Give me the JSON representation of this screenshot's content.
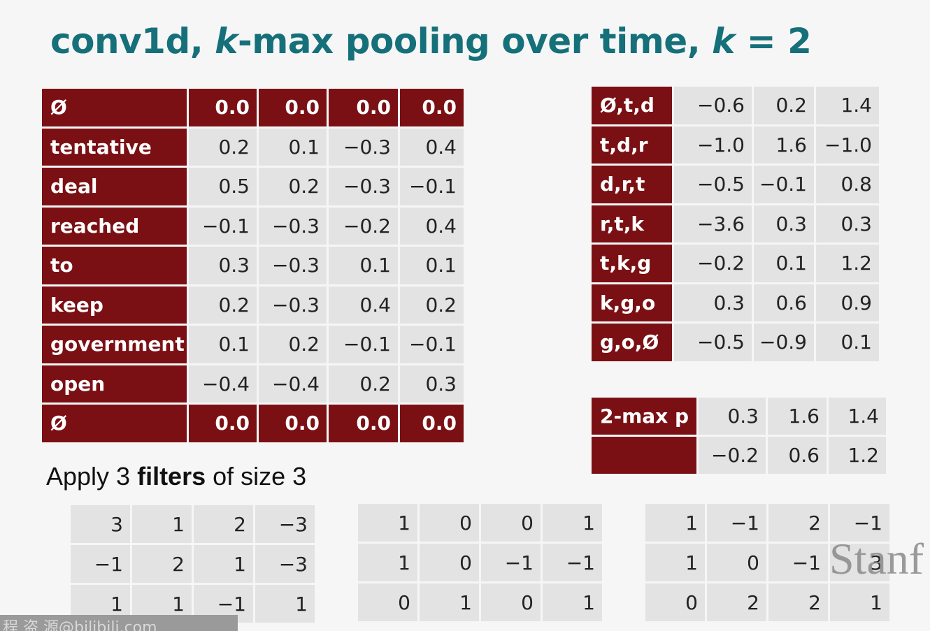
{
  "title": {
    "part1": "conv1d, ",
    "k1": "k",
    "part2": "-max pooling over time, ",
    "k2": "k",
    "part3": " = 2"
  },
  "word_table": {
    "rows": [
      {
        "label": "Ø",
        "values": [
          "0.0",
          "0.0",
          "0.0",
          "0.0"
        ],
        "padding": true
      },
      {
        "label": "tentative",
        "values": [
          "0.2",
          "0.1",
          "−0.3",
          "0.4"
        ],
        "padding": false
      },
      {
        "label": "deal",
        "values": [
          "0.5",
          "0.2",
          "−0.3",
          "−0.1"
        ],
        "padding": false
      },
      {
        "label": "reached",
        "values": [
          "−0.1",
          "−0.3",
          "−0.2",
          "0.4"
        ],
        "padding": false
      },
      {
        "label": "to",
        "values": [
          "0.3",
          "−0.3",
          "0.1",
          "0.1"
        ],
        "padding": false
      },
      {
        "label": "keep",
        "values": [
          "0.2",
          "−0.3",
          "0.4",
          "0.2"
        ],
        "padding": false
      },
      {
        "label": "government",
        "values": [
          "0.1",
          "0.2",
          "−0.1",
          "−0.1"
        ],
        "padding": false
      },
      {
        "label": "open",
        "values": [
          "−0.4",
          "−0.4",
          "0.2",
          "0.3"
        ],
        "padding": false
      },
      {
        "label": "Ø",
        "values": [
          "0.0",
          "0.0",
          "0.0",
          "0.0"
        ],
        "padding": true
      }
    ]
  },
  "conv_table": {
    "rows": [
      {
        "label": "Ø,t,d",
        "values": [
          "−0.6",
          "0.2",
          "1.4"
        ]
      },
      {
        "label": "t,d,r",
        "values": [
          "−1.0",
          "1.6",
          "−1.0"
        ]
      },
      {
        "label": "d,r,t",
        "values": [
          "−0.5",
          "−0.1",
          "0.8"
        ]
      },
      {
        "label": "r,t,k",
        "values": [
          "−3.6",
          "0.3",
          "0.3"
        ]
      },
      {
        "label": "t,k,g",
        "values": [
          "−0.2",
          "0.1",
          "1.2"
        ]
      },
      {
        "label": "k,g,o",
        "values": [
          "0.3",
          "0.6",
          "0.9"
        ]
      },
      {
        "label": "g,o,Ø",
        "values": [
          "−0.5",
          "−0.9",
          "0.1"
        ]
      }
    ]
  },
  "pool_table": {
    "rows": [
      {
        "label": "2-max p",
        "values": [
          "0.3",
          "1.6",
          "1.4"
        ]
      },
      {
        "label": "",
        "values": [
          "−0.2",
          "0.6",
          "1.2"
        ]
      }
    ]
  },
  "caption": {
    "pre": "Apply 3 ",
    "bold": "filters",
    "post": " of size 3"
  },
  "filters": [
    [
      [
        "3",
        "1",
        "2",
        "−3"
      ],
      [
        "−1",
        "2",
        "1",
        "−3"
      ],
      [
        "1",
        "1",
        "−1",
        "1"
      ]
    ],
    [
      [
        "1",
        "0",
        "0",
        "1"
      ],
      [
        "1",
        "0",
        "−1",
        "−1"
      ],
      [
        "0",
        "1",
        "0",
        "1"
      ]
    ],
    [
      [
        "1",
        "−1",
        "2",
        "−1"
      ],
      [
        "1",
        "0",
        "−1",
        "3"
      ],
      [
        "0",
        "2",
        "2",
        "1"
      ]
    ]
  ],
  "watermark": "Stanf",
  "watermark_bottom": "程 盗 源@bilibili.com",
  "colors": {
    "title": "#15707a",
    "label_bg": "#7b1014",
    "cell_bg": "#e3e3e3"
  }
}
